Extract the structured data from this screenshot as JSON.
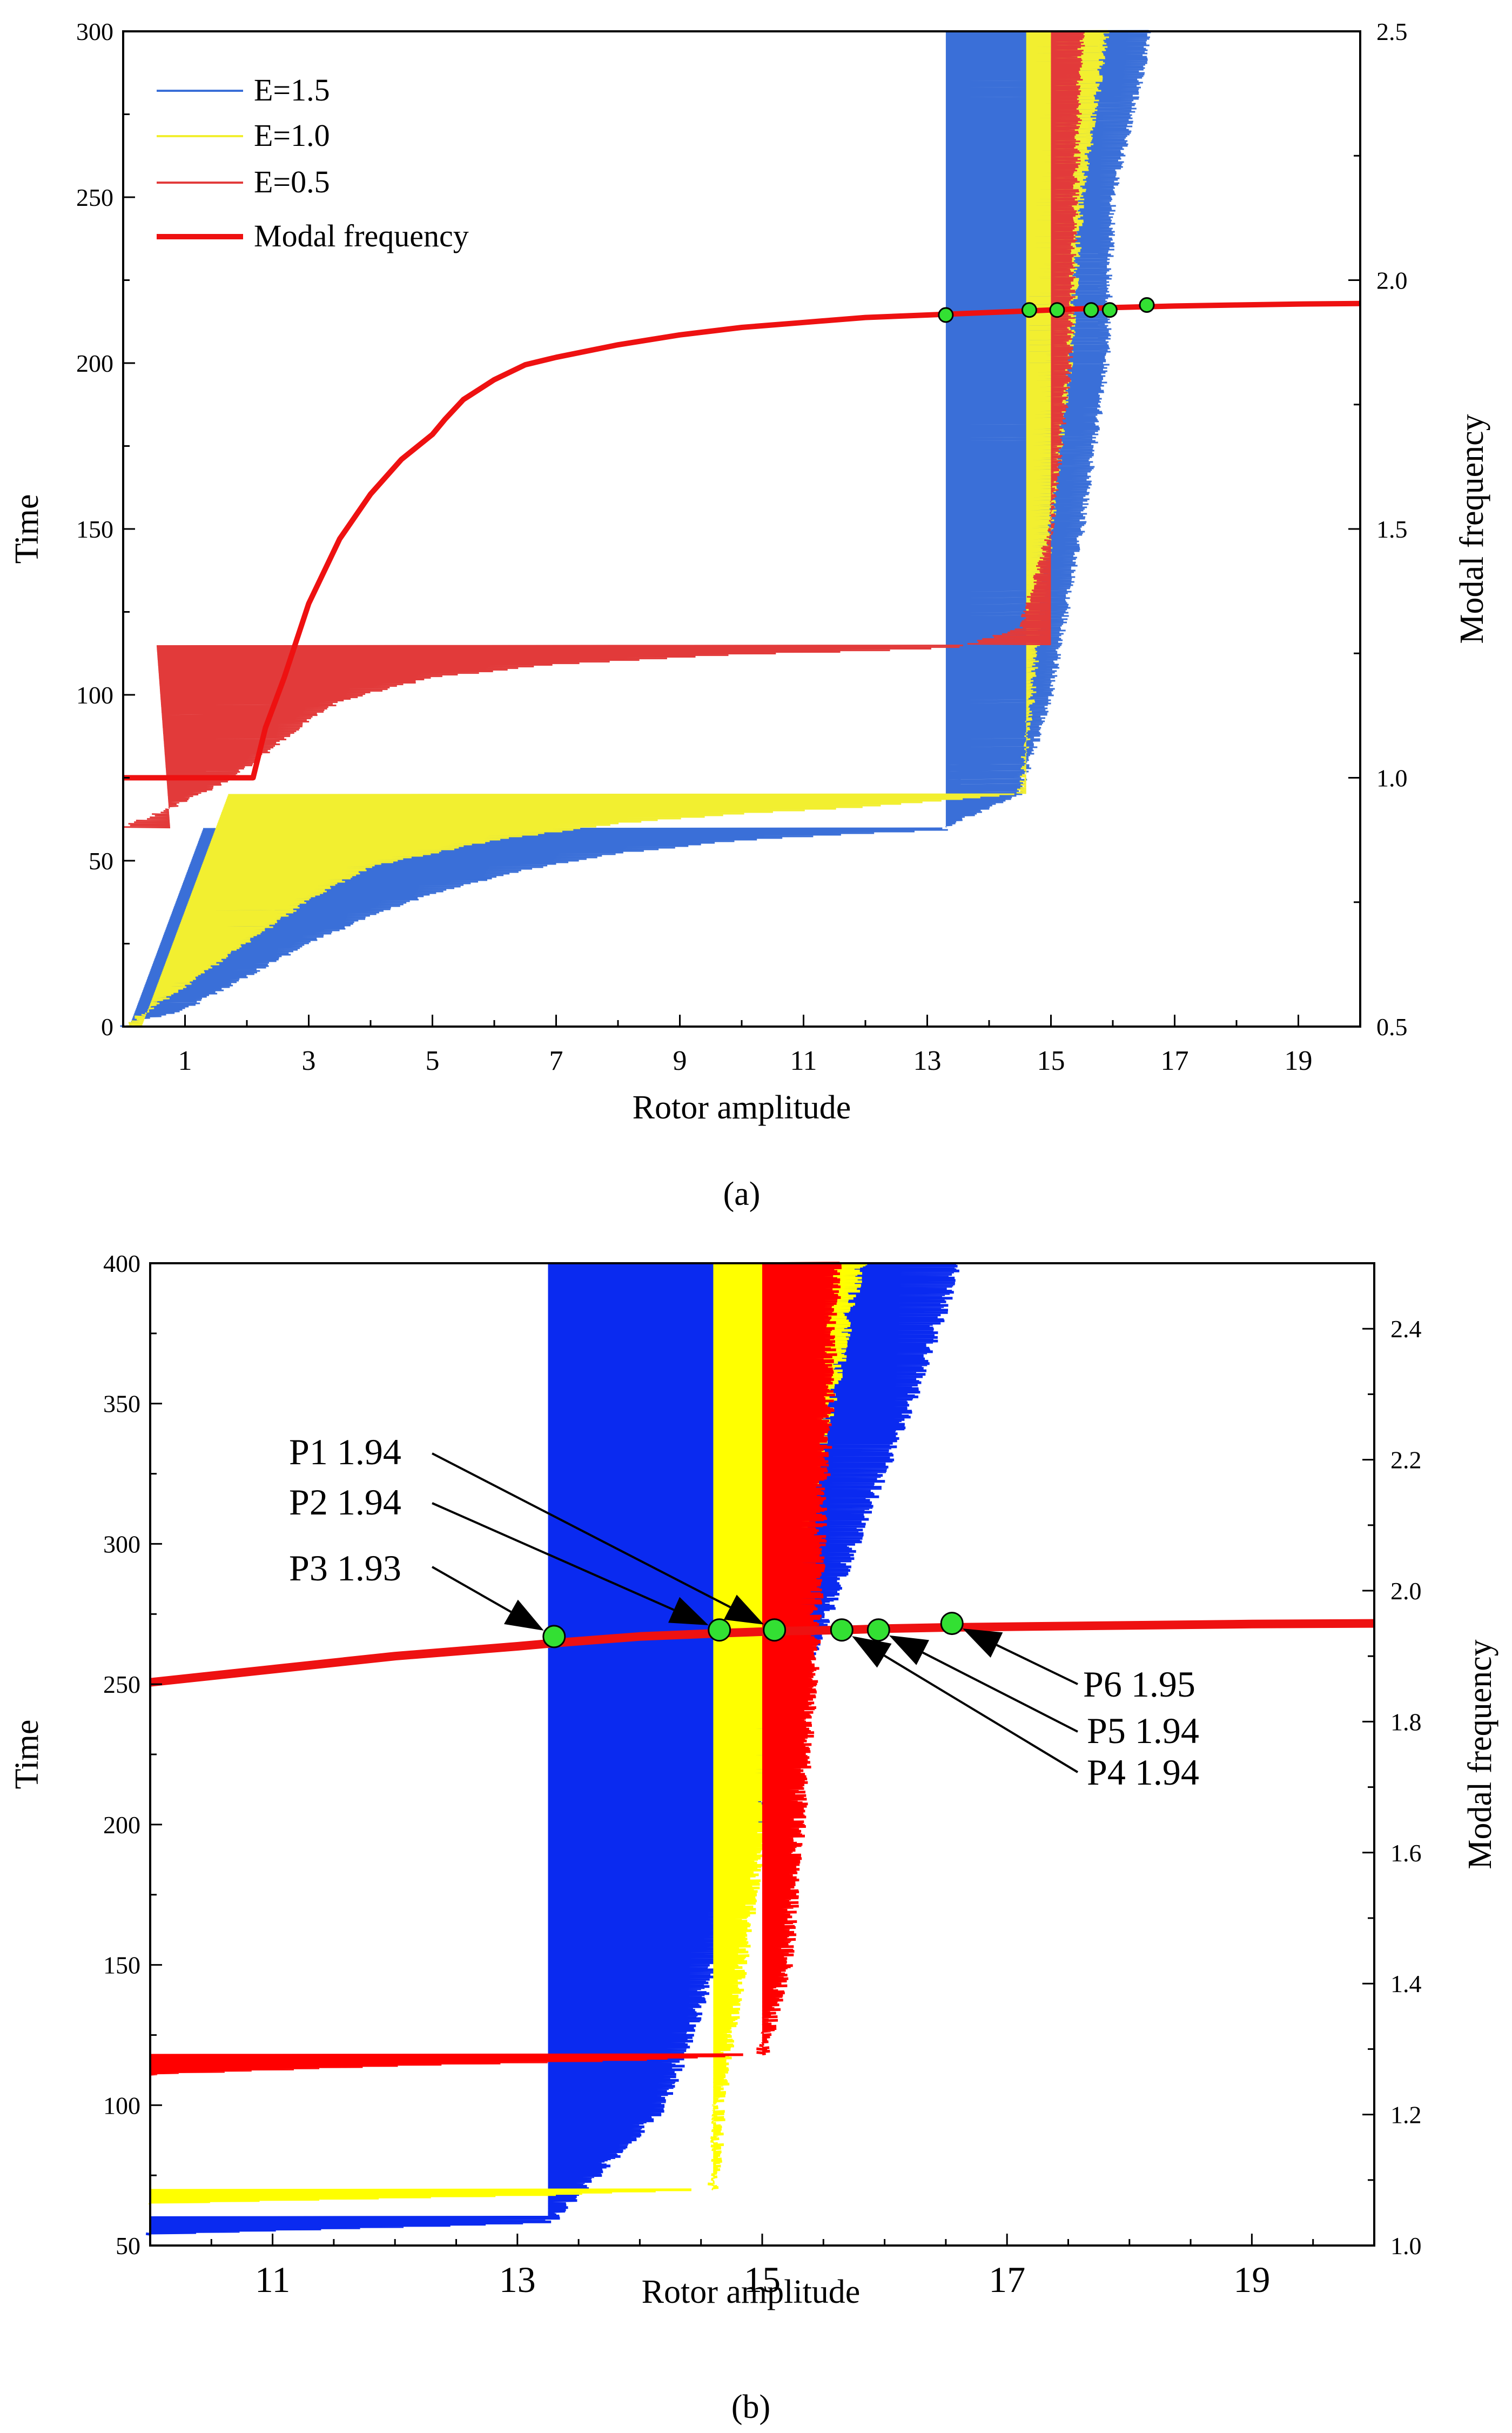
{
  "chart_data": [
    {
      "type": "line",
      "panel_label": "(a)",
      "title": "",
      "xlabel": "Rotor amplitude",
      "ylabel": "Time",
      "y2label": "Modal frequency",
      "xlim": [
        0,
        20
      ],
      "ylim": [
        0,
        300
      ],
      "y2lim": [
        0.5,
        2.5
      ],
      "x_ticks": [
        "1",
        "3",
        "5",
        "7",
        "9",
        "11",
        "13",
        "15",
        "17",
        "19"
      ],
      "y_ticks": [
        "0",
        "50",
        "100",
        "150",
        "200",
        "250",
        "300"
      ],
      "y2_ticks": [
        "0.5",
        "1.0",
        "1.5",
        "2.0",
        "2.5"
      ],
      "legend": [
        "E=1.5",
        "E=1.0",
        "E=0.5",
        "Modal frequency"
      ],
      "legend_position": "top-left",
      "colors": {
        "E=1.5": "#3a6fd8",
        "E=1.0": "#f2ef30",
        "E=0.5": "#e23a3a",
        "Modal frequency": "#ee1111",
        "marker": "#33e033"
      },
      "series": [
        {
          "name": "Modal frequency",
          "axis": "y2",
          "x": [
            0,
            2.1,
            2.3,
            2.6,
            3.0,
            3.5,
            4.0,
            4.5,
            5.0,
            5.2,
            5.5,
            6.0,
            6.5,
            7.0,
            8.0,
            9.0,
            10.0,
            11.0,
            12.0,
            13.0,
            14.0,
            15.0,
            16.0,
            17.0,
            18.0,
            19.0,
            20.0
          ],
          "y": [
            1.0,
            1.0,
            1.1,
            1.2,
            1.35,
            1.48,
            1.57,
            1.64,
            1.69,
            1.72,
            1.76,
            1.8,
            1.83,
            1.845,
            1.87,
            1.89,
            1.905,
            1.915,
            1.925,
            1.93,
            1.935,
            1.94,
            1.945,
            1.948,
            1.95,
            1.952,
            1.953
          ]
        },
        {
          "name": "E=1.5",
          "axis": "y",
          "x": [
            0.0,
            1.0,
            2.0,
            3.0,
            4.0,
            5.0,
            6.5,
            8.0,
            10.0,
            12.0,
            13.3,
            13.3,
            14.5,
            15.0,
            15.5,
            15.9,
            16.0,
            16.5,
            16.6
          ],
          "y": [
            0,
            5,
            15,
            25,
            33,
            40,
            47,
            52,
            56,
            58,
            59,
            60,
            70,
            100,
            150,
            200,
            250,
            290,
            300
          ],
          "band": true
        },
        {
          "name": "E=1.0",
          "axis": "y",
          "x": [
            0.0,
            1.0,
            2.0,
            3.0,
            4.0,
            6.0,
            8.0,
            10.0,
            12.0,
            13.3,
            14.5,
            14.7,
            15.0,
            15.3,
            15.5,
            15.9
          ],
          "y": [
            0,
            12,
            25,
            38,
            48,
            56,
            61,
            64,
            66,
            68,
            70,
            100,
            150,
            200,
            250,
            300
          ],
          "band": true
        },
        {
          "name": "E=0.5",
          "axis": "y",
          "x": [
            0.0,
            0.8,
            1.5,
            2.0,
            2.5,
            3.0,
            3.5,
            5.0,
            7.0,
            10.0,
            12.0,
            13.5,
            14.5,
            15.0,
            15.3,
            15.5
          ],
          "y": [
            60,
            66,
            72,
            78,
            85,
            92,
            98,
            105,
            109,
            112,
            113,
            114,
            120,
            150,
            200,
            300
          ],
          "band": true
        }
      ],
      "points": [
        {
          "x": 13.3,
          "y2": 1.93
        },
        {
          "x": 14.65,
          "y2": 1.94
        },
        {
          "x": 15.1,
          "y2": 1.94
        },
        {
          "x": 15.65,
          "y2": 1.94
        },
        {
          "x": 15.95,
          "y2": 1.94
        },
        {
          "x": 16.55,
          "y2": 1.95
        }
      ]
    },
    {
      "type": "line",
      "panel_label": "(b)",
      "title": "",
      "xlabel": "Rotor amplitude",
      "ylabel": "Time",
      "y2label": "Modal frequency",
      "xlim": [
        10,
        20
      ],
      "ylim": [
        50,
        400
      ],
      "y2lim": [
        1.0,
        2.5
      ],
      "x_ticks": [
        "11",
        "13",
        "15",
        "17",
        "19"
      ],
      "y_ticks": [
        "50",
        "100",
        "150",
        "200",
        "250",
        "300",
        "350",
        "400"
      ],
      "y2_ticks": [
        "1.0",
        "1.2",
        "1.4",
        "1.6",
        "1.8",
        "2.0",
        "2.2",
        "2.4"
      ],
      "colors": {
        "E=1.5": "#0a2af0",
        "E=1.0": "#ffff00",
        "E=0.5": "#ff0000",
        "Modal frequency": "#ee1111",
        "marker": "#33e033"
      },
      "series": [
        {
          "name": "Modal frequency",
          "axis": "y2",
          "x": [
            10,
            11,
            12,
            13,
            13.3,
            14,
            14.65,
            15.1,
            15.65,
            16.0,
            16.55,
            17,
            18,
            19,
            20
          ],
          "y": [
            1.86,
            1.88,
            1.9,
            1.915,
            1.92,
            1.93,
            1.935,
            1.938,
            1.94,
            1.942,
            1.944,
            1.945,
            1.947,
            1.949,
            1.95
          ]
        },
        {
          "name": "E=1.5",
          "axis": "y",
          "x": [
            10,
            13.25,
            13.3,
            14.2,
            14.6,
            15.3,
            16.2,
            16.6
          ],
          "y": [
            54,
            58,
            60,
            100,
            150,
            250,
            350,
            400
          ],
          "band": true
        },
        {
          "name": "E=1.0",
          "axis": "y",
          "x": [
            10,
            13.3,
            14.6,
            14.65,
            15.0,
            15.3,
            15.8
          ],
          "y": [
            65,
            68,
            70,
            100,
            200,
            300,
            400
          ],
          "band": true
        },
        {
          "name": "E=0.5",
          "axis": "y",
          "x": [
            10,
            12,
            14,
            15.0,
            15.2,
            15.4,
            15.6
          ],
          "y": [
            111,
            114,
            116,
            118,
            150,
            250,
            400
          ],
          "band": true
        }
      ],
      "points": [
        {
          "x": 15.1,
          "y2": 1.94
        },
        {
          "x": 14.65,
          "y2": 1.94
        },
        {
          "x": 13.3,
          "y2": 1.93
        },
        {
          "x": 15.65,
          "y2": 1.94
        },
        {
          "x": 15.95,
          "y2": 1.94
        },
        {
          "x": 16.55,
          "y2": 1.95
        }
      ],
      "annotations": [
        {
          "text": "P1 1.94",
          "point": 0,
          "side": "left"
        },
        {
          "text": "P2 1.94",
          "point": 1,
          "side": "left"
        },
        {
          "text": "P3 1.93",
          "point": 2,
          "side": "left"
        },
        {
          "text": "P4 1.94",
          "point": 3,
          "side": "right"
        },
        {
          "text": "P5 1.94",
          "point": 4,
          "side": "right"
        },
        {
          "text": "P6 1.95",
          "point": 5,
          "side": "right"
        }
      ]
    }
  ]
}
